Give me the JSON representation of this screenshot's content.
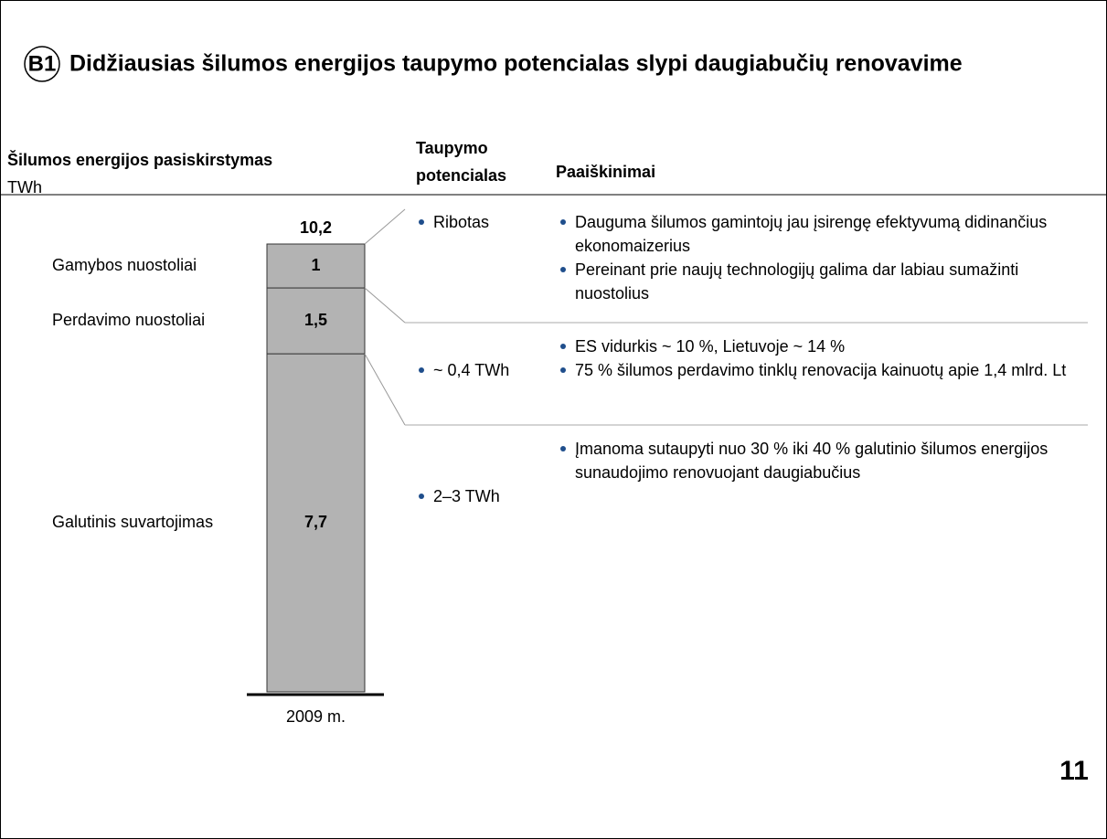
{
  "slide": {
    "badge": "B1",
    "title": "Didžiausias šilumos energijos taupymo potencialas slypi daugiabučių renovavime",
    "page_number": "11"
  },
  "chart_data": {
    "type": "stacked_bar",
    "title": "Šilumos energijos pasiskirstymas",
    "unit": "TWh",
    "categories": [
      "2009 m."
    ],
    "series": [
      {
        "name": "Galutinis suvartojimas",
        "color": "#b3b3b3",
        "values": [
          7.7
        ],
        "value_labels": [
          "7,7"
        ]
      },
      {
        "name": "Perdavimo nuostoliai",
        "color": "#b3b3b3",
        "values": [
          1.5
        ],
        "value_labels": [
          "1,5"
        ]
      },
      {
        "name": "Gamybos nuostoliai",
        "color": "#b3b3b3",
        "values": [
          1
        ]
      }
    ],
    "total": 10.2,
    "total_label": "10,2"
  },
  "table": {
    "headers": [
      "Taupymo potencialas",
      "Paaiškinimai"
    ],
    "rows": [
      {
        "potential": "Ribotas",
        "notes": [
          "Dauguma šilumos gamintojų jau įsirengę efektyvumą didinančius ekonomaizerius",
          "Pereinant prie naujų technologijų galima dar labiau sumažinti nuostolius"
        ]
      },
      {
        "potential": "~ 0,4 TWh",
        "notes": [
          "ES vidurkis ~ 10 %, Lietuvoje ~ 14 %",
          "75 % šilumos perdavimo tinklų renovacija kainuotų apie 1,4 mlrd. Lt"
        ]
      },
      {
        "potential": "2–3 TWh",
        "notes": [
          "Įmanoma sutaupyti nuo 30 % iki 40 % galutinio šilumos energijos sunaudojimo renovuojant daugiabučius"
        ]
      }
    ]
  }
}
